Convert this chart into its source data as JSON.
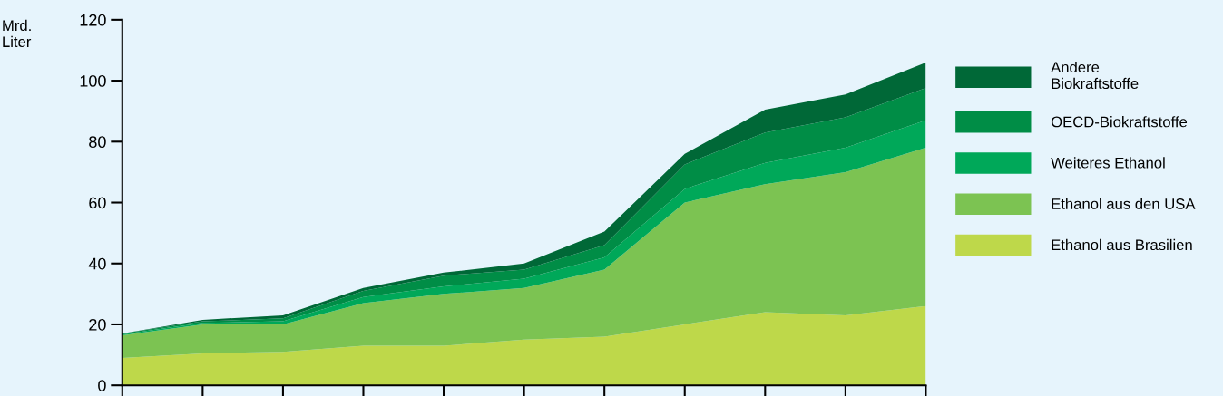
{
  "chart_data": {
    "type": "area",
    "stacked": true,
    "ylabel": "Mrd.\nLiter",
    "categories": [
      null,
      null,
      null,
      null,
      null,
      null,
      null,
      null,
      null,
      null,
      null
    ],
    "series": [
      {
        "name": "Ethanol aus Brasilien",
        "color": "#bed84a",
        "values": [
          9,
          10.5,
          11,
          13,
          13,
          15,
          16,
          20,
          24,
          23,
          26
        ]
      },
      {
        "name": "Ethanol aus den USA",
        "color": "#7cc352",
        "values": [
          7.4,
          9.5,
          9,
          14,
          17,
          17,
          22,
          40,
          42,
          47,
          52
        ]
      },
      {
        "name": "Weiteres Ethanol",
        "color": "#00a859",
        "values": [
          0.3,
          0.5,
          1,
          2,
          2.5,
          3,
          4,
          4.5,
          7,
          8,
          9
        ]
      },
      {
        "name": "OECD-Biokraftstoffe",
        "color": "#008d46",
        "values": [
          0.3,
          0.5,
          1,
          2,
          3.5,
          3,
          4,
          8,
          10,
          10,
          10.6
        ]
      },
      {
        "name": "Andere\nBiokraftstoffe",
        "color": "#006837",
        "values": [
          0,
          0.5,
          1,
          1,
          1,
          2,
          4.5,
          3.5,
          7.5,
          7.5,
          8.4
        ]
      }
    ],
    "ylim": [
      0,
      120
    ],
    "yticks": [
      0,
      20,
      40,
      60,
      80,
      100,
      120
    ],
    "grid": false,
    "legend": "right"
  }
}
